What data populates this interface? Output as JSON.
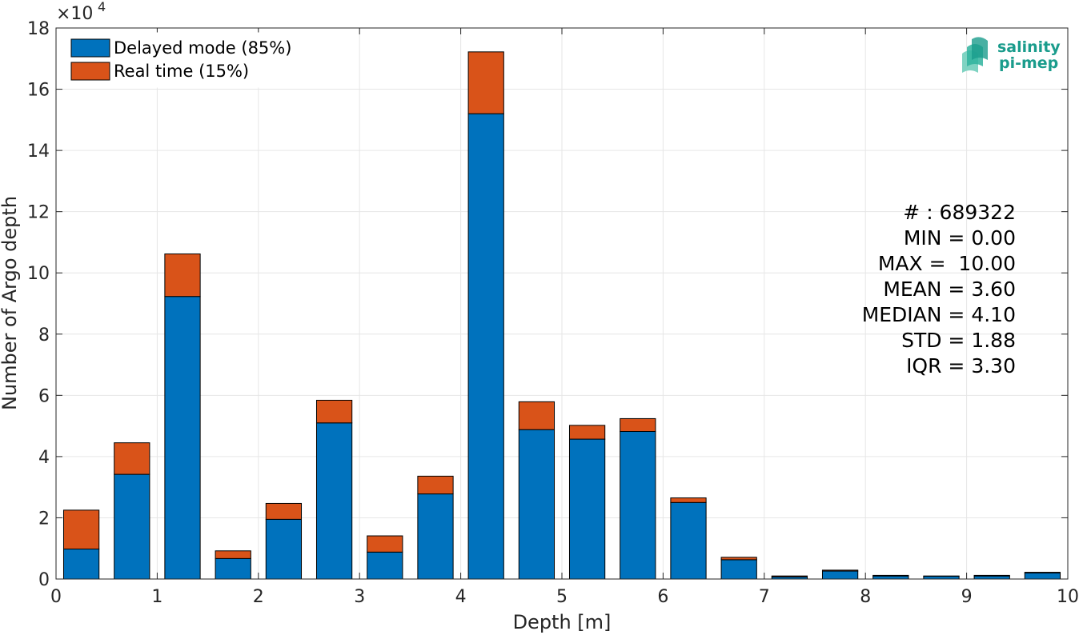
{
  "chart_data": {
    "type": "bar",
    "stacked": true,
    "title": "",
    "xlabel": "Depth [m]",
    "ylabel": "Number of Argo depth",
    "y_exponent_label": "×10",
    "y_exponent": "4",
    "xlim": [
      0,
      10
    ],
    "ylim": [
      0,
      180000
    ],
    "xticks": [
      "0",
      "1",
      "2",
      "3",
      "4",
      "5",
      "6",
      "7",
      "8",
      "9",
      "10"
    ],
    "yticks": [
      "0",
      "2",
      "4",
      "6",
      "8",
      "10",
      "12",
      "14",
      "16",
      "18"
    ],
    "grid": true,
    "legend_position": "top-left",
    "bin_width": 0.5,
    "x": [
      0.25,
      0.75,
      1.25,
      1.75,
      2.25,
      2.75,
      3.25,
      3.75,
      4.25,
      4.75,
      5.25,
      5.75,
      6.25,
      6.75,
      7.25,
      7.75,
      8.25,
      8.75,
      9.25,
      9.75
    ],
    "series": [
      {
        "name": "Delayed mode (85%)",
        "color": "#0072bd",
        "values": [
          9800,
          34200,
          92300,
          6700,
          19500,
          51000,
          8800,
          27800,
          152000,
          48800,
          45700,
          48200,
          25000,
          6300,
          700,
          2600,
          1000,
          900,
          1000,
          2000
        ]
      },
      {
        "name": "Real time (15%)",
        "color": "#d95319",
        "values": [
          12700,
          10300,
          13900,
          2500,
          5200,
          7400,
          5300,
          5800,
          20200,
          9100,
          4500,
          4200,
          1500,
          800,
          300,
          300,
          200,
          100,
          200,
          200
        ]
      }
    ]
  },
  "stats": {
    "count": "# : 689322",
    "min": "MIN = 0.00",
    "max": "MAX =  10.00",
    "mean": "MEAN = 3.60",
    "median": "MEDIAN = 4.10",
    "std": "STD = 1.88",
    "iqr": "IQR = 3.30"
  },
  "logo": {
    "line1": "salinity",
    "line2": "pi-mep",
    "color": "#1a9c8c"
  }
}
